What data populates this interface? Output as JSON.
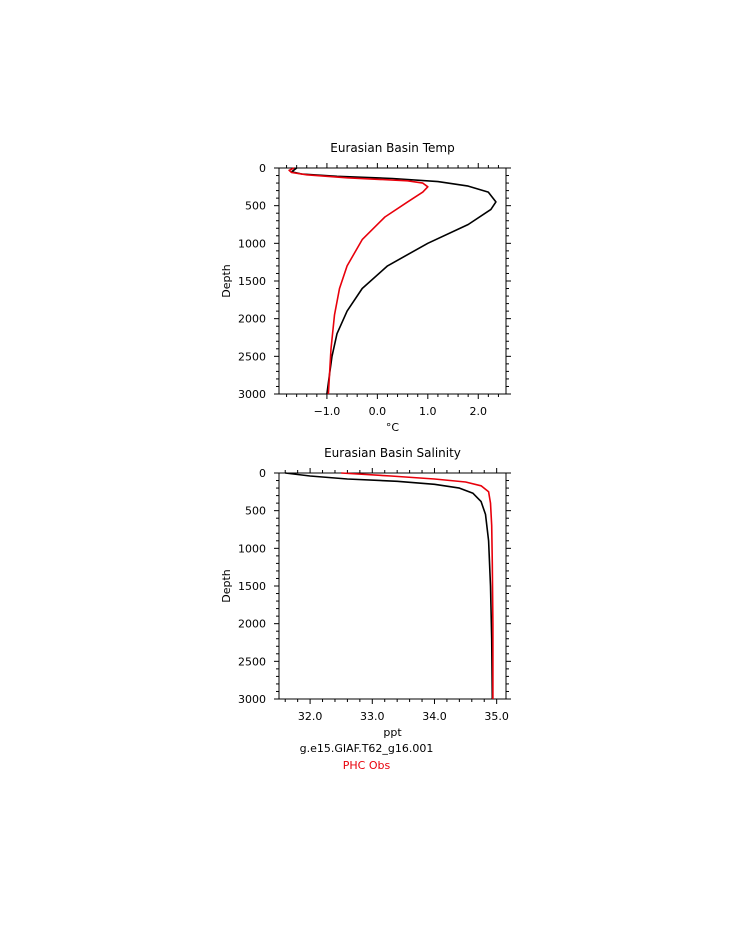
{
  "chart_data": [
    {
      "type": "line",
      "title": "Eurasian Basin Temp",
      "xlabel": "°C",
      "ylabel": "Depth",
      "xlim": [
        -1.95,
        2.55
      ],
      "ylim": [
        3000,
        0
      ],
      "y_inverted": true,
      "xticks": [
        -1.0,
        0.0,
        1.0,
        2.0
      ],
      "xtick_labels": [
        "−1.0",
        "0.0",
        "1.0",
        "2.0"
      ],
      "yticks": [
        0,
        500,
        1000,
        1500,
        2000,
        2500,
        3000
      ],
      "ytick_labels": [
        "0",
        "500",
        "1000",
        "1500",
        "2000",
        "2500",
        "3000"
      ],
      "series": [
        {
          "name": "g.e15.GIAF.T62_g16.001",
          "color": "#000000",
          "x": [
            -1.6,
            -1.7,
            -1.5,
            -0.8,
            0.3,
            1.2,
            1.8,
            2.2,
            2.35,
            2.25,
            1.8,
            1.0,
            0.2,
            -0.3,
            -0.6,
            -0.8,
            -0.9,
            -0.96,
            -1.0
          ],
          "y": [
            0,
            50,
            80,
            110,
            140,
            180,
            240,
            320,
            450,
            550,
            750,
            1000,
            1300,
            1600,
            1900,
            2200,
            2500,
            2800,
            3000
          ]
        },
        {
          "name": "PHC Obs",
          "color": "#e8000b",
          "x": [
            -1.65,
            -1.75,
            -1.7,
            -1.4,
            -0.6,
            0.6,
            0.9,
            1.0,
            0.9,
            0.6,
            0.15,
            -0.3,
            -0.6,
            -0.75,
            -0.85,
            -0.92,
            -0.97
          ],
          "y": [
            0,
            30,
            60,
            90,
            130,
            170,
            200,
            250,
            320,
            450,
            650,
            950,
            1300,
            1600,
            1950,
            2400,
            3000
          ]
        }
      ]
    },
    {
      "type": "line",
      "title": "Eurasian Basin Salinity",
      "xlabel": "ppt",
      "ylabel": "Depth",
      "xlim": [
        31.5,
        35.15
      ],
      "ylim": [
        3000,
        0
      ],
      "y_inverted": true,
      "xticks": [
        32.0,
        33.0,
        34.0,
        35.0
      ],
      "xtick_labels": [
        "32.0",
        "33.0",
        "34.0",
        "35.0"
      ],
      "yticks": [
        0,
        500,
        1000,
        1500,
        2000,
        2500,
        3000
      ],
      "ytick_labels": [
        "0",
        "500",
        "1000",
        "1500",
        "2000",
        "2500",
        "3000"
      ],
      "series": [
        {
          "name": "g.e15.GIAF.T62_g16.001",
          "color": "#000000",
          "x": [
            31.6,
            32.0,
            32.6,
            33.4,
            34.0,
            34.4,
            34.62,
            34.75,
            34.82,
            34.87,
            34.9,
            34.92,
            34.93
          ],
          "y": [
            0,
            40,
            80,
            110,
            150,
            200,
            270,
            380,
            550,
            900,
            1500,
            2200,
            3000
          ]
        },
        {
          "name": "PHC Obs",
          "color": "#e8000b",
          "x": [
            32.5,
            33.3,
            34.0,
            34.5,
            34.75,
            34.87,
            34.9,
            34.92,
            34.93,
            34.94,
            34.94
          ],
          "y": [
            0,
            40,
            80,
            120,
            170,
            250,
            400,
            700,
            1200,
            2000,
            3000
          ]
        }
      ]
    }
  ],
  "legend": {
    "model_label": "g.e15.GIAF.T62_g16.001",
    "obs_label": "PHC Obs",
    "model_color": "#000000",
    "obs_color": "#e8000b"
  }
}
